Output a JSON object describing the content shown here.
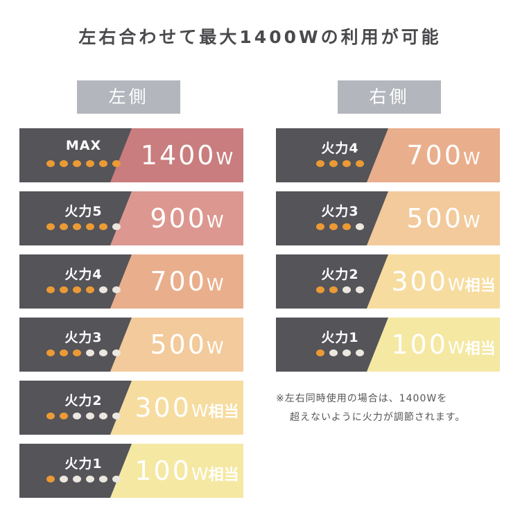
{
  "title": "左右合わせて最大1400Wの利用が可能",
  "colors": {
    "dark": "#545459",
    "dot_on": "#ec9a35",
    "dot_off": "#ece7df",
    "header": "#b3b6bd"
  },
  "left": {
    "label": "左側",
    "rows": [
      {
        "level": "MAX",
        "value": "1400",
        "unit": "W",
        "suffix": "",
        "dots_on": 6,
        "dots_total": 6,
        "color": "#c97d7e"
      },
      {
        "level": "火力5",
        "value": "900",
        "unit": "W",
        "suffix": "",
        "dots_on": 5,
        "dots_total": 6,
        "color": "#dc9890"
      },
      {
        "level": "火力4",
        "value": "700",
        "unit": "W",
        "suffix": "",
        "dots_on": 4,
        "dots_total": 6,
        "color": "#e9ae8c"
      },
      {
        "level": "火力3",
        "value": "500",
        "unit": "W",
        "suffix": "",
        "dots_on": 3,
        "dots_total": 6,
        "color": "#f2ca9b"
      },
      {
        "level": "火力2",
        "value": "300",
        "unit": "W",
        "suffix": "相当",
        "dots_on": 2,
        "dots_total": 6,
        "color": "#f6dc9f"
      },
      {
        "level": "火力1",
        "value": "100",
        "unit": "W",
        "suffix": "相当",
        "dots_on": 1,
        "dots_total": 6,
        "color": "#f5e8a3"
      }
    ]
  },
  "right": {
    "label": "右側",
    "rows": [
      {
        "level": "火力4",
        "value": "700",
        "unit": "W",
        "suffix": "",
        "dots_on": 4,
        "dots_total": 4,
        "color": "#e9ae8c"
      },
      {
        "level": "火力3",
        "value": "500",
        "unit": "W",
        "suffix": "",
        "dots_on": 3,
        "dots_total": 4,
        "color": "#f2ca9b"
      },
      {
        "level": "火力2",
        "value": "300",
        "unit": "W",
        "suffix": "相当",
        "dots_on": 2,
        "dots_total": 4,
        "color": "#f6dc9f"
      },
      {
        "level": "火力1",
        "value": "100",
        "unit": "W",
        "suffix": "相当",
        "dots_on": 1,
        "dots_total": 4,
        "color": "#f5e8a3"
      }
    ]
  },
  "note": {
    "line1": "※左右同時使用の場合は、1400Wを",
    "line2": "超えないように火力が調節されます。"
  }
}
